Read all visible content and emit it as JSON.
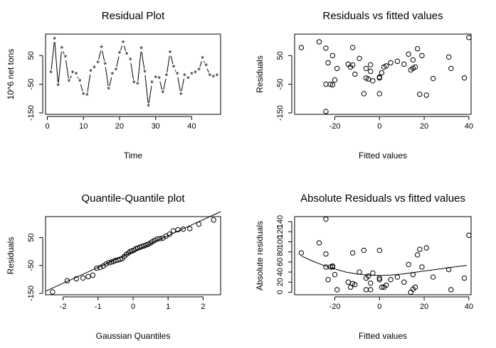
{
  "chart_data": [
    {
      "type": "line",
      "title": "Residual Plot",
      "xlabel": "Time",
      "ylabel": "10^6 net tons",
      "xlim": [
        -0.5,
        48
      ],
      "ylim": [
        -155,
        125
      ],
      "xticks": [
        0,
        10,
        20,
        30,
        40
      ],
      "yticks": [
        -150,
        -50,
        50
      ],
      "marker": "*",
      "connect": true,
      "series": [
        {
          "x": [
            1,
            2,
            3,
            4,
            5,
            6,
            7,
            8,
            9,
            10,
            11,
            12,
            13,
            14,
            15,
            16,
            17,
            18,
            19,
            20,
            21,
            22,
            23,
            24,
            25,
            26,
            27,
            28,
            29,
            30,
            31,
            32,
            33,
            34,
            35,
            36,
            37,
            38,
            39,
            40,
            41,
            42,
            43,
            44,
            45,
            46,
            47
          ],
          "values": [
            -10,
            108,
            -55,
            75,
            45,
            -40,
            -10,
            -15,
            -40,
            -85,
            -88,
            -5,
            7,
            25,
            78,
            20,
            -67,
            -15,
            0,
            58,
            95,
            55,
            35,
            -45,
            -50,
            74,
            -8,
            -127,
            -45,
            -27,
            -30,
            -80,
            -20,
            60,
            10,
            -15,
            -85,
            -20,
            -30,
            -15,
            -10,
            0,
            41,
            15,
            -20,
            -25,
            -20
          ]
        }
      ]
    },
    {
      "type": "scatter",
      "title": "Residuals vs fitted values",
      "xlabel": "Fitted values",
      "ylabel": "Residuals",
      "xlim": [
        -38,
        41
      ],
      "ylim": [
        -155,
        125
      ],
      "xticks": [
        -20,
        0,
        20,
        40
      ],
      "yticks": [
        -150,
        -50,
        50
      ],
      "series": [
        {
          "x": [
            -35,
            -27,
            -24,
            -23,
            -22,
            -21,
            -21,
            -20,
            -19,
            -24,
            -24,
            -14,
            -13,
            -12,
            -12,
            -11,
            -9,
            -7,
            -6,
            -6,
            -5,
            -4,
            -4,
            -3,
            0,
            0,
            0,
            1,
            2,
            3,
            5,
            8,
            11,
            13,
            14,
            15,
            15,
            16,
            17,
            18,
            19,
            21,
            24,
            31,
            32,
            38,
            40
          ],
          "values": [
            78,
            98,
            -145,
            25,
            -50,
            -52,
            50,
            -35,
            5,
            76,
            -50,
            20,
            10,
            78,
            17,
            -15,
            40,
            -83,
            5,
            -28,
            -32,
            18,
            -5,
            -38,
            -83,
            -25,
            -28,
            -10,
            10,
            14,
            25,
            30,
            20,
            55,
            0,
            6,
            35,
            10,
            74,
            -85,
            50,
            -88,
            -30,
            45,
            5,
            -28,
            113
          ]
        }
      ]
    },
    {
      "type": "scatter",
      "title": "Quantile-Quantile plot",
      "xlabel": "Gaussian Quantiles",
      "ylabel": "Residuals",
      "xlim": [
        -2.5,
        2.5
      ],
      "ylim": [
        -155,
        125
      ],
      "xticks": [
        -2,
        -1,
        0,
        1,
        2
      ],
      "yticks": [
        -150,
        -50,
        50
      ],
      "qq_line": {
        "slope": 57,
        "intercept": 0
      },
      "series": [
        {
          "x": [
            -2.3,
            -1.88,
            -1.62,
            -1.43,
            -1.28,
            -1.15,
            -1.04,
            -0.94,
            -0.85,
            -0.77,
            -0.69,
            -0.62,
            -0.55,
            -0.49,
            -0.43,
            -0.37,
            -0.31,
            -0.25,
            -0.19,
            -0.13,
            -0.08,
            -0.03,
            0.03,
            0.08,
            0.13,
            0.19,
            0.25,
            0.31,
            0.37,
            0.43,
            0.49,
            0.55,
            0.62,
            0.69,
            0.77,
            0.85,
            0.94,
            1.04,
            1.15,
            1.28,
            1.43,
            1.62,
            1.88,
            2.3
          ],
          "values": [
            -145,
            -105,
            -98,
            -95,
            -90,
            -85,
            -60,
            -57,
            -52,
            -45,
            -40,
            -38,
            -35,
            -32,
            -30,
            -28,
            -25,
            -18,
            -10,
            -5,
            0,
            2,
            5,
            10,
            12,
            15,
            18,
            20,
            23,
            26,
            30,
            35,
            40,
            45,
            46,
            48,
            55,
            62,
            74,
            78,
            80,
            82,
            98,
            113
          ]
        }
      ]
    },
    {
      "type": "scatter",
      "title": "Absolute Residuals vs fitted values",
      "xlabel": "Fitted values",
      "ylabel": "Absolute residuals",
      "xlim": [
        -38,
        41
      ],
      "ylim": [
        -5,
        150
      ],
      "xticks": [
        -20,
        0,
        20,
        40
      ],
      "yticks": [
        0,
        20,
        40,
        60,
        80,
        100,
        120,
        140
      ],
      "smooth_line": {
        "x": [
          -35,
          -30,
          -25,
          -20,
          -15,
          -10,
          -5,
          0,
          5,
          10,
          15,
          20,
          25,
          30,
          35,
          39
        ],
        "y": [
          72,
          62,
          53,
          46,
          40,
          36,
          34,
          33,
          34,
          36,
          39,
          42,
          45,
          48,
          51,
          53
        ]
      },
      "series": [
        {
          "x": [
            -35,
            -27,
            -24,
            -23,
            -22,
            -21,
            -21,
            -20,
            -19,
            -24,
            -24,
            -14,
            -13,
            -12,
            -12,
            -11,
            -9,
            -7,
            -6,
            -6,
            -5,
            -4,
            -4,
            -3,
            0,
            0,
            0,
            1,
            2,
            3,
            5,
            8,
            11,
            13,
            14,
            15,
            15,
            16,
            17,
            18,
            19,
            21,
            24,
            31,
            32,
            38,
            40
          ],
          "values": [
            78,
            98,
            145,
            25,
            50,
            52,
            50,
            35,
            5,
            76,
            50,
            20,
            10,
            78,
            17,
            15,
            40,
            83,
            5,
            28,
            32,
            18,
            5,
            38,
            83,
            25,
            28,
            10,
            10,
            14,
            25,
            30,
            20,
            55,
            0,
            6,
            35,
            10,
            74,
            85,
            50,
            88,
            30,
            45,
            5,
            28,
            113
          ]
        }
      ]
    }
  ]
}
